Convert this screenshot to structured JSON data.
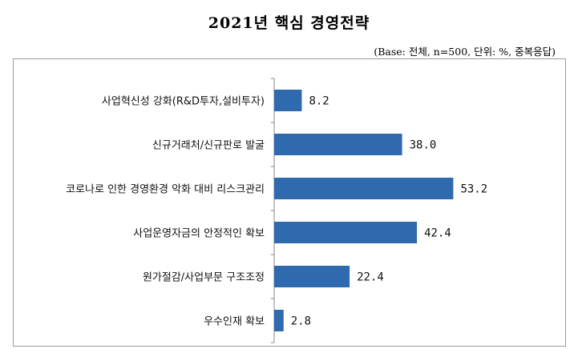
{
  "page": {
    "title": "2021년 핵심 경영전략",
    "subtitle": "(Base: 전체, n=500, 단위: %, 중복응답)"
  },
  "chart_data": {
    "type": "bar",
    "orientation": "horizontal",
    "title": "2021년 핵심 경영전략",
    "subtitle": "(Base: 전체, n=500, 단위: %, 중복응답)",
    "categories": [
      "사업혁신성 강화(R&D투자,설비투자)",
      "신규거래처/신규판로 발굴",
      "코로나로 인한 경영환경 악화 대비 리스크관리",
      "사업운영자금의 안정적인 확보",
      "원가절감/사업부문 구조조정",
      "우수인재 확보"
    ],
    "values": [
      8.2,
      38.0,
      53.2,
      42.4,
      22.4,
      2.8
    ],
    "value_labels": [
      "8.2",
      "38.0",
      "53.2",
      "42.4",
      "22.4",
      "2.8"
    ],
    "bar_color": "#2e6aad",
    "xlim": [
      0,
      60
    ],
    "grid": false,
    "legend": "none"
  }
}
